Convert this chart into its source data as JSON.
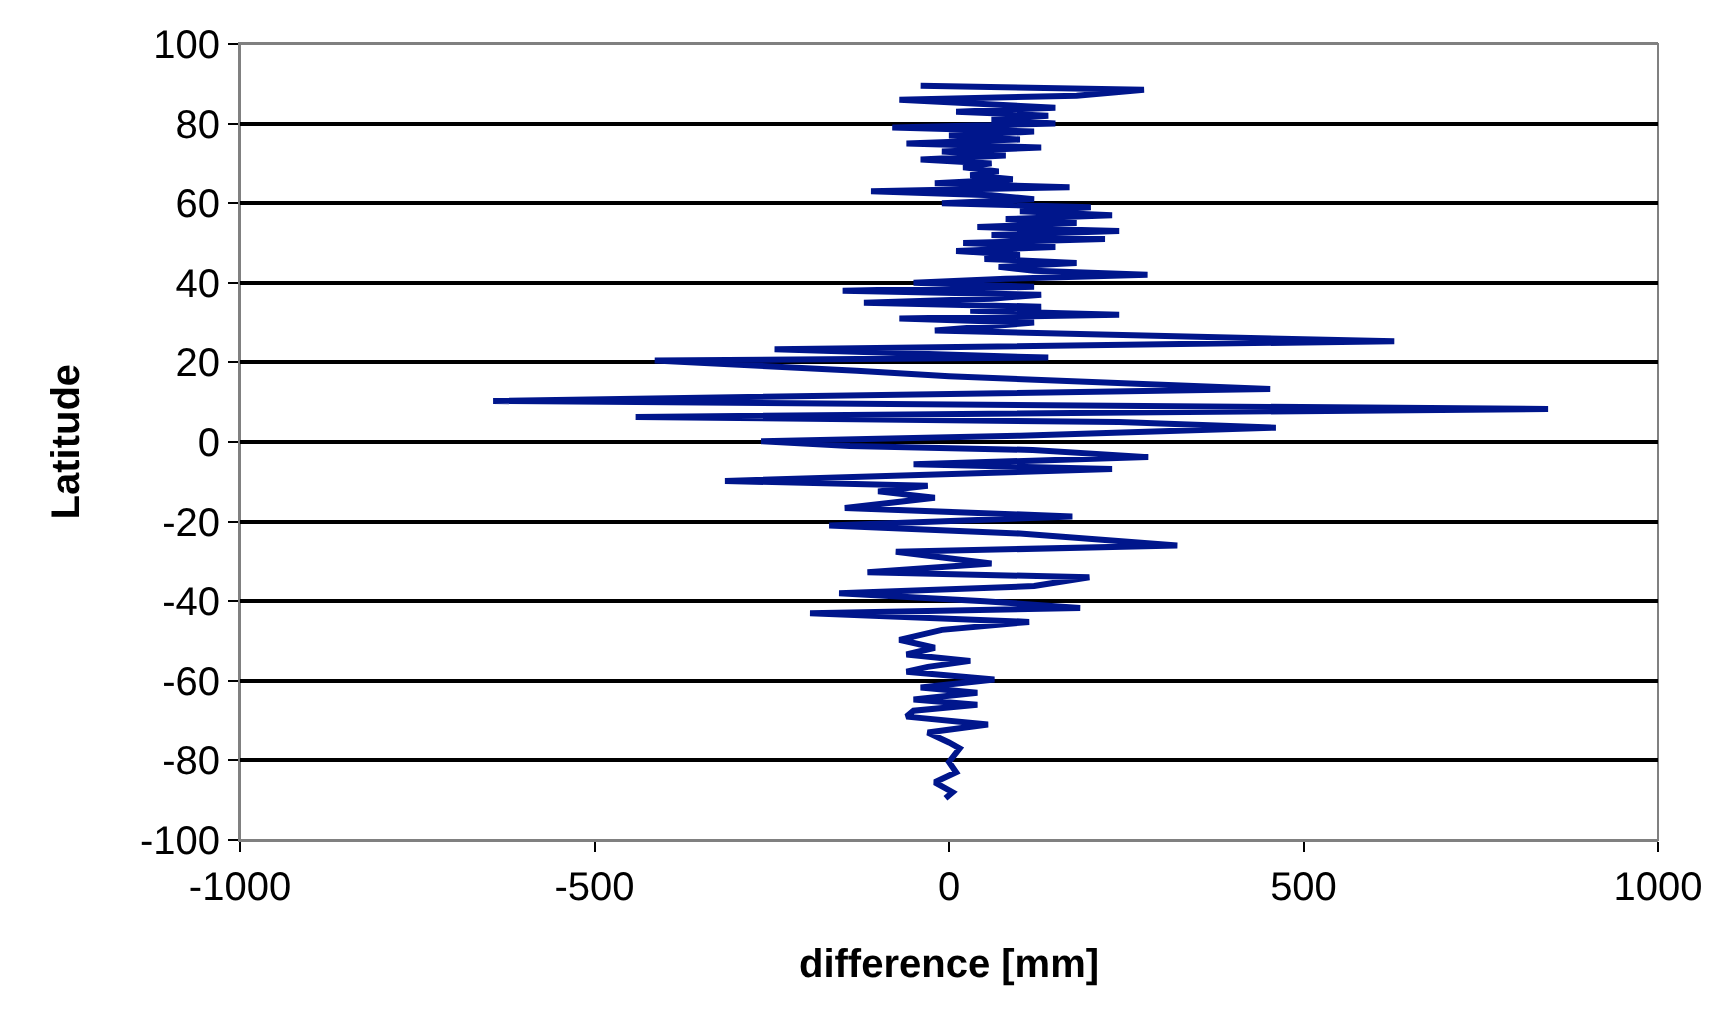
{
  "chart_data": {
    "type": "line",
    "xlabel": "difference [mm]",
    "ylabel": "Latitude",
    "xlim": [
      -1000,
      1000
    ],
    "xticks": [
      -1000,
      -500,
      0,
      500,
      1000
    ],
    "ylim": [
      -100,
      100
    ],
    "yticks": [
      -100,
      -80,
      -60,
      -40,
      -20,
      0,
      20,
      40,
      60,
      80,
      100
    ],
    "grid": "y",
    "marker": "none",
    "line_style": "solid",
    "series": [
      {
        "color": "#00168c",
        "x": [
          -40,
          275,
          180,
          -70,
          150,
          10,
          140,
          60,
          150,
          -80,
          120,
          0,
          100,
          -60,
          130,
          -10,
          80,
          -40,
          60,
          20,
          70,
          30,
          90,
          -20,
          170,
          -110,
          60,
          120,
          -10,
          200,
          100,
          230,
          80,
          180,
          40,
          240,
          60,
          220,
          20,
          150,
          10,
          100,
          50,
          180,
          70,
          120,
          280,
          80,
          -50,
          120,
          -150,
          130,
          60,
          -120,
          130,
          30,
          240,
          -70,
          120,
          -20,
          628,
          -246,
          140,
          -415,
          -130,
          0,
          453,
          -643,
          845,
          -442,
          240,
          461,
          100,
          -265,
          -140,
          118,
          281,
          -50,
          230,
          -316,
          -30,
          -100,
          -20,
          -147,
          174,
          -169,
          100,
          322,
          -75,
          60,
          -115,
          198,
          120,
          -155,
          50,
          185,
          -196,
          113,
          -10,
          -70,
          -20,
          -60,
          30,
          -30,
          -60,
          64,
          -40,
          40,
          -50,
          40,
          -50,
          -60,
          55,
          -30,
          0,
          15,
          0,
          10,
          -20,
          5,
          -5
        ],
        "values": [
          89.5,
          88.5,
          87,
          86,
          84,
          83,
          82,
          81,
          80,
          79,
          78,
          77,
          76,
          75,
          74,
          73,
          72,
          71,
          70,
          69,
          68,
          67,
          66,
          65,
          64,
          63,
          62,
          61,
          60,
          59,
          58,
          57,
          56,
          55,
          54,
          53,
          52,
          51,
          50,
          49,
          48,
          47,
          46,
          45,
          44,
          43,
          42,
          41,
          40,
          39,
          38,
          37,
          36,
          35,
          34,
          33,
          32,
          31,
          30,
          28,
          25.3,
          23.3,
          21.2,
          20.5,
          17.9,
          16.5,
          13.3,
          10.3,
          8.3,
          6.3,
          5,
          3.6,
          1.6,
          0.2,
          -1,
          -2,
          -3.8,
          -5.6,
          -6.8,
          -9.8,
          -11,
          -12.4,
          -14,
          -16.6,
          -18.7,
          -21,
          -23,
          -26,
          -27.6,
          -30.5,
          -32.7,
          -34,
          -36.2,
          -38,
          -40,
          -41.7,
          -43,
          -45.2,
          -47.2,
          -49.7,
          -51.7,
          -53.4,
          -55,
          -56.5,
          -57.7,
          -59.7,
          -61.7,
          -63,
          -64.7,
          -66,
          -67.5,
          -69,
          -71,
          -73,
          -75.5,
          -77,
          -80.4,
          -83,
          -85.5,
          -88,
          -89.5
        ]
      }
    ]
  }
}
